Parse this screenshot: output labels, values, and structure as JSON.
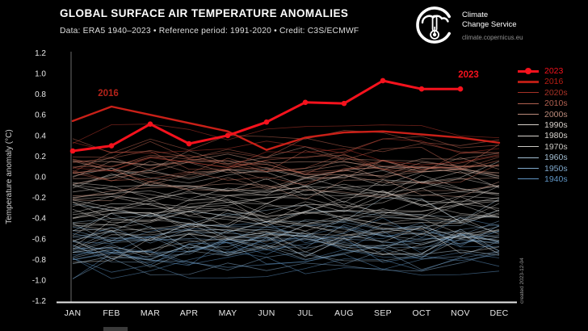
{
  "header": {
    "title": "GLOBAL SURFACE AIR TEMPERATURE ANOMALIES",
    "subtitle": "Data: ERA5 1940–2023 • Reference period: 1991-2020 • Credit: C3S/ECMWF"
  },
  "logo": {
    "name": "Copernicus Climate Change Service",
    "line1": "Climate",
    "line2": "Change Service",
    "url": "climate.copernicus.eu"
  },
  "chart_data": {
    "type": "line",
    "title": "GLOBAL SURFACE AIR TEMPERATURE ANOMALIES",
    "subtitle": "Data: ERA5 1940–2023 • Reference period: 1991-2020 • Credit: C3S/ECMWF",
    "x_categories": [
      "JAN",
      "FEB",
      "MAR",
      "APR",
      "MAY",
      "JUN",
      "JUL",
      "AUG",
      "SEP",
      "OCT",
      "NOV",
      "DEC"
    ],
    "ylabel": "Temperature anomaly (°C)",
    "ylim": [
      -1.2,
      1.2
    ],
    "ytick_step": 0.2,
    "grid": false,
    "legend_position": "right",
    "background": "#000000",
    "highlight_series": [
      {
        "name": "2023",
        "color": "#f5121d",
        "width": 3,
        "markers": true,
        "values": [
          0.25,
          0.3,
          0.51,
          0.32,
          0.4,
          0.53,
          0.72,
          0.71,
          0.93,
          0.85,
          0.85
        ]
      },
      {
        "name": "2016",
        "color": "#c92018",
        "width": 2.4,
        "markers": false,
        "values": [
          0.54,
          0.68,
          0.6,
          0.52,
          0.44,
          0.26,
          0.38,
          0.43,
          0.44,
          0.41,
          0.38,
          0.33
        ]
      }
    ],
    "decade_groups": [
      {
        "name": "2020s",
        "color": "#c23b2e",
        "years": 3,
        "jan_mean": 0.28,
        "dec_mean": 0.33,
        "spread": 0.22,
        "noise": 0.1,
        "seed": 11
      },
      {
        "name": "2010s",
        "color": "#c96a55",
        "years": 10,
        "jan_mean": 0.12,
        "dec_mean": 0.2,
        "spread": 0.3,
        "noise": 0.11,
        "seed": 12
      },
      {
        "name": "2000s",
        "color": "#cf9c8a",
        "years": 10,
        "jan_mean": 0.0,
        "dec_mean": 0.06,
        "spread": 0.28,
        "noise": 0.11,
        "seed": 13
      },
      {
        "name": "1990s",
        "color": "#d8cfc9",
        "years": 10,
        "jan_mean": -0.18,
        "dec_mean": -0.1,
        "spread": 0.32,
        "noise": 0.12,
        "seed": 14
      },
      {
        "name": "1980s",
        "color": "#d9d5d0",
        "years": 10,
        "jan_mean": -0.33,
        "dec_mean": -0.27,
        "spread": 0.32,
        "noise": 0.12,
        "seed": 15
      },
      {
        "name": "1970s",
        "color": "#ccccc8",
        "years": 10,
        "jan_mean": -0.55,
        "dec_mean": -0.49,
        "spread": 0.32,
        "noise": 0.13,
        "seed": 16
      },
      {
        "name": "1960s",
        "color": "#a8c2d6",
        "years": 10,
        "jan_mean": -0.58,
        "dec_mean": -0.53,
        "spread": 0.34,
        "noise": 0.13,
        "seed": 17
      },
      {
        "name": "1950s",
        "color": "#7fa8cb",
        "years": 10,
        "jan_mean": -0.68,
        "dec_mean": -0.62,
        "spread": 0.34,
        "noise": 0.13,
        "seed": 18
      },
      {
        "name": "1940s",
        "color": "#5e93c2",
        "years": 10,
        "jan_mean": -0.73,
        "dec_mean": -0.66,
        "spread": 0.36,
        "noise": 0.14,
        "seed": 19
      }
    ],
    "legend": [
      {
        "label": "2023",
        "color": "#f5121d",
        "style": "bold-marker"
      },
      {
        "label": "2016",
        "color": "#b81d14",
        "style": "thick"
      },
      {
        "label": "2020s",
        "color": "#a63226",
        "style": "thin"
      },
      {
        "label": "2010s",
        "color": "#b06050",
        "style": "thin"
      },
      {
        "label": "2000s",
        "color": "#bb8a7a",
        "style": "thin"
      },
      {
        "label": "1990s",
        "color": "#d6cfc9",
        "style": "thin"
      },
      {
        "label": "1980s",
        "color": "#d6d2cc",
        "style": "thin"
      },
      {
        "label": "1970s",
        "color": "#c9c7c2",
        "style": "thin"
      },
      {
        "label": "1960s",
        "color": "#a3bed2",
        "style": "thin"
      },
      {
        "label": "1950s",
        "color": "#7fa8cb",
        "style": "thin"
      },
      {
        "label": "1940s",
        "color": "#5e93c2",
        "style": "thin"
      }
    ],
    "annotations": [
      {
        "text": "2016",
        "month": 1,
        "value": 0.78,
        "dx": -4,
        "color": "#b5231a"
      },
      {
        "text": "2023",
        "month": 10,
        "value": 0.96,
        "dx": 10,
        "color": "#f5121d"
      }
    ],
    "watermark": "created 2023-12-04"
  }
}
